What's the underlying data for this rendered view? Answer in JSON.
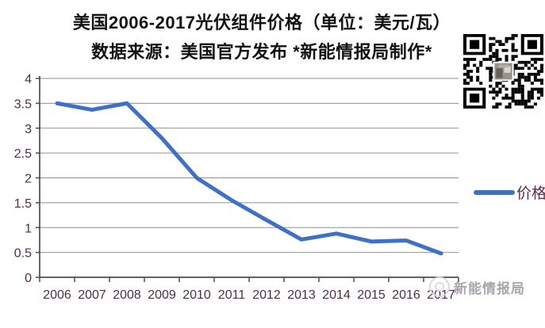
{
  "title": {
    "line1": "美国2006-2017光伏组件价格（单位：美元/瓦）",
    "line2": "数据来源：美国官方发布  *新能情报局制作*"
  },
  "chart_data": {
    "type": "line",
    "title": "美国2006-2017光伏组件价格（单位：美元/瓦）",
    "source_note": "数据来源：美国官方发布",
    "unit": "美元/瓦",
    "categories": [
      "2006",
      "2007",
      "2008",
      "2009",
      "2010",
      "2011",
      "2012",
      "2013",
      "2014",
      "2015",
      "2016",
      "2017"
    ],
    "series": [
      {
        "name": "价格",
        "values": [
          3.5,
          3.37,
          3.5,
          2.8,
          2.0,
          1.55,
          1.15,
          0.76,
          0.88,
          0.72,
          0.74,
          0.48
        ]
      }
    ],
    "ylim": [
      0,
      4
    ],
    "ytick_step": 0.5,
    "ytick_labels": [
      "0",
      "0.5",
      "1",
      "1.5",
      "2",
      "2.5",
      "3",
      "3.5",
      "4"
    ],
    "xlabel": "",
    "ylabel": "",
    "grid": true,
    "legend_position": "right"
  },
  "legend": {
    "label": "价格"
  },
  "watermark": {
    "text": "新能情报局",
    "icon": "compass-logo-icon"
  },
  "icons": {
    "qr_code": "qr-code-icon"
  },
  "colors": {
    "line": "#3e70c7",
    "tick_label": "#4a2f4a",
    "legend_text": "#5e2c4a",
    "gridline": "#8f8f8f",
    "axis": "#4d4d4d",
    "title_text": "#121212",
    "watermark_text": "#aaa5ad"
  }
}
